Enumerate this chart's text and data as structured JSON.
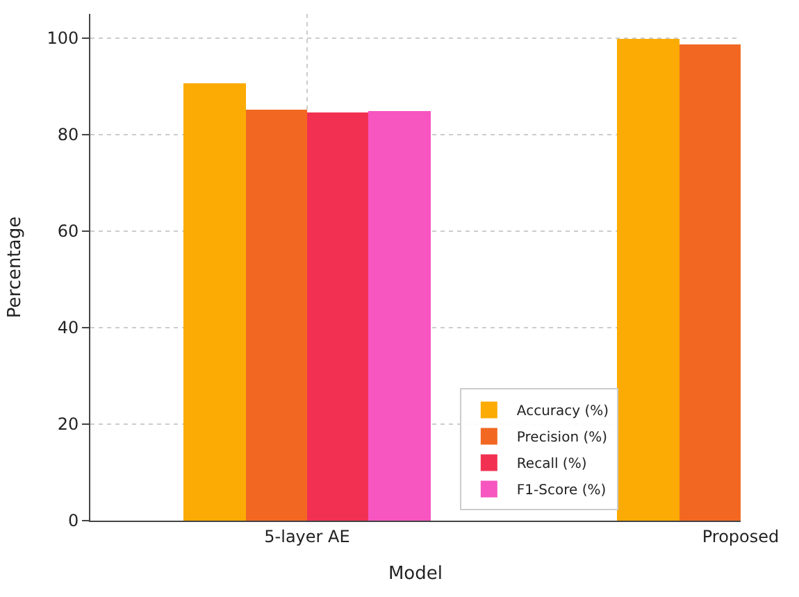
{
  "chart_data": {
    "type": "bar",
    "xlabel": "Model",
    "ylabel": "Percentage",
    "categories": [
      "5-layer AE",
      "Proposed"
    ],
    "series": [
      {
        "name": "Accuracy (%)",
        "color": "#fbab03",
        "values": [
          90.5,
          99.9
        ]
      },
      {
        "name": "Precision (%)",
        "color": "#f26822",
        "values": [
          85.1,
          98.7
        ]
      },
      {
        "name": "Recall (%)",
        "color": "#f23152",
        "values": [
          84.7,
          null
        ]
      },
      {
        "name": "F1-Score (%)",
        "color": "#f755c0",
        "values": [
          84.9,
          null
        ]
      }
    ],
    "ylim": [
      0,
      105
    ],
    "yticks": [
      0,
      20,
      40,
      60,
      80,
      100
    ],
    "grid": true,
    "legend": "bottom"
  }
}
